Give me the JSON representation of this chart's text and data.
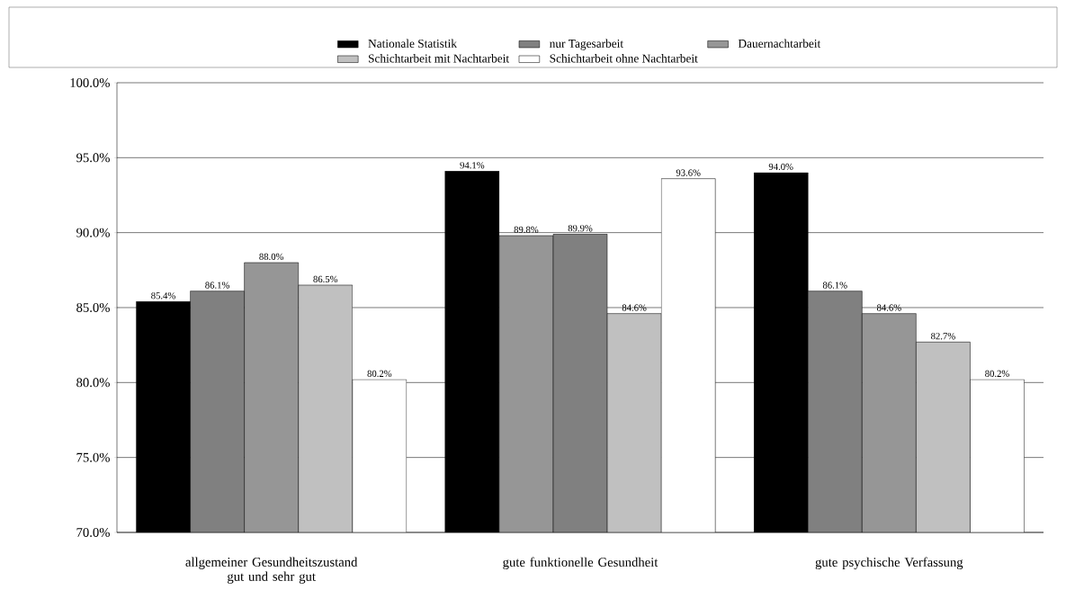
{
  "chart_data": {
    "type": "bar",
    "categories": [
      "allgemeiner Gesundheitszustand gut und sehr gut",
      "gute funktionelle Gesundheit",
      "gute psychische Verfassung"
    ],
    "series": [
      {
        "name": "Nationale Statistik",
        "color": "#000000",
        "colors": [
          "#000000",
          "#000000",
          "#000000"
        ],
        "values": [
          85.4,
          94.1,
          94.0
        ],
        "value_labels": [
          "85.4%",
          "94.1%",
          "94.0%"
        ]
      },
      {
        "name": "nur Tagesarbeit",
        "color": "#808080",
        "colors": [
          "#808080",
          "#969696",
          "#808080"
        ],
        "values": [
          86.1,
          89.8,
          86.1
        ],
        "value_labels": [
          "86.1%",
          "89.8%",
          "86.1%"
        ]
      },
      {
        "name": "Dauernachtarbeit",
        "color": "#969696",
        "colors": [
          "#969696",
          "#808080",
          "#969696"
        ],
        "values": [
          88.0,
          89.9,
          84.6
        ],
        "value_labels": [
          "88.0%",
          "89.9%",
          "84.6%"
        ]
      },
      {
        "name": "Schichtarbeit mit Nachtarbeit",
        "color": "#c0c0c0",
        "colors": [
          "#c0c0c0",
          "#c0c0c0",
          "#c0c0c0"
        ],
        "values": [
          86.5,
          84.6,
          82.7
        ],
        "value_labels": [
          "86.5%",
          "84.6%",
          "82.7%"
        ]
      },
      {
        "name": "Schichtarbeit ohne Nachtarbeit",
        "color": "#ffffff",
        "colors": [
          "#ffffff",
          "#ffffff",
          "#ffffff"
        ],
        "values": [
          80.2,
          93.6,
          80.2
        ],
        "value_labels": [
          "80.2%",
          "93.6%",
          "80.2%"
        ]
      }
    ],
    "ylim": [
      70,
      100
    ],
    "yticks": [
      {
        "value": 70,
        "label": "70.0%"
      },
      {
        "value": 75,
        "label": "75.0%"
      },
      {
        "value": 80,
        "label": "80.0%"
      },
      {
        "value": 85,
        "label": "85.0%"
      },
      {
        "value": 90,
        "label": "90.0%"
      },
      {
        "value": 95,
        "label": "95.0%"
      },
      {
        "value": 100,
        "label": "100.0%"
      }
    ],
    "grid": "y",
    "legend": "top"
  }
}
